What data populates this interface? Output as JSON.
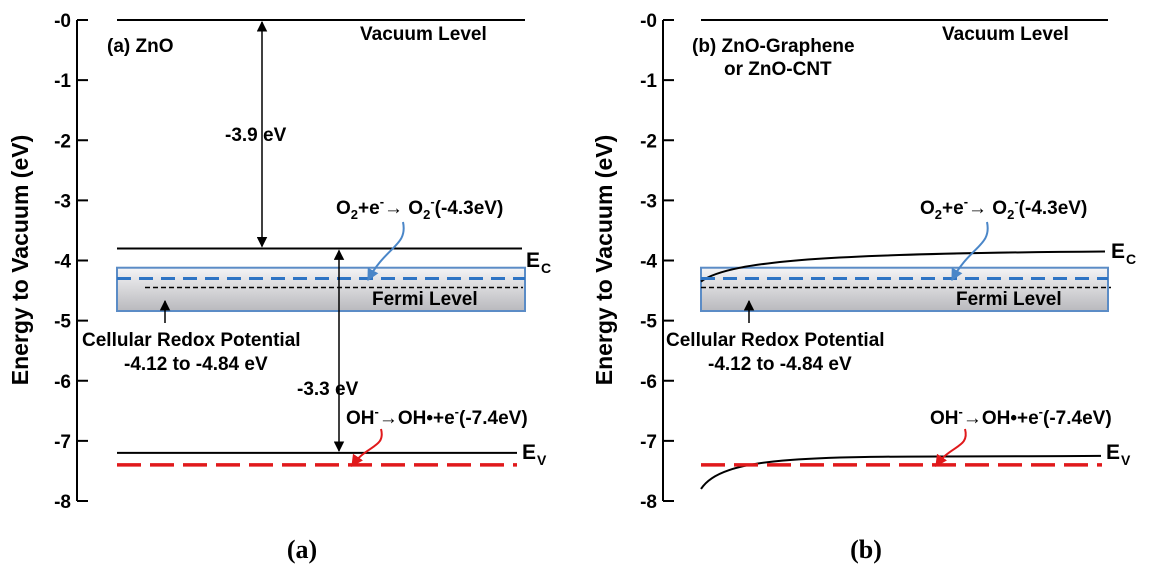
{
  "panels": [
    {
      "id": "a",
      "caption": "a",
      "title_lines": [
        "(a) ZnO"
      ],
      "ylabel": "Energy to Vacuum (eV)",
      "yticks": [
        "-0",
        "-1",
        "-2",
        "-3",
        "-4",
        "-5",
        "-6",
        "-7",
        "-8"
      ],
      "ylim": [
        0,
        -8
      ],
      "vacuum_label": "Vacuum Level",
      "ec_label": "E",
      "ec_sub": "C",
      "ev_label": "E",
      "ev_sub": "V",
      "fermi_label": "Fermi Level",
      "redox_label_lines": [
        "Cellular Redox Potential",
        "-4.12 to -4.84 eV"
      ],
      "o2_reaction": {
        "a": "O",
        "b": "2",
        "c": "+e",
        "d": "-",
        "e": "→ O",
        "f": "2",
        "g": "-",
        "h": "(-4.3eV)"
      },
      "oh_reaction": {
        "a": "OH",
        "b": "-",
        "c": "→OH•+e",
        "d": "-",
        "e": "(-7.4eV)"
      },
      "gap_vac_label": "-3.9 eV",
      "gap_band_label": "-3.3 eV",
      "energies": {
        "vacuum": 0,
        "ec": -3.8,
        "ev": -7.2,
        "fermi": -4.45,
        "o2": -4.3,
        "oh": -7.4,
        "redox_top": -4.12,
        "redox_bottom": -4.84
      },
      "band_bending": false
    },
    {
      "id": "b",
      "caption": "b",
      "title_lines": [
        "(b) ZnO-Graphene",
        "or ZnO-CNT"
      ],
      "ylabel": "Energy to Vacuum (eV)",
      "yticks": [
        "-0",
        "-1",
        "-2",
        "-3",
        "-4",
        "-5",
        "-6",
        "-7",
        "-8"
      ],
      "ylim": [
        0,
        -8
      ],
      "vacuum_label": "Vacuum Level",
      "ec_label": "E",
      "ec_sub": "C",
      "ev_label": "E",
      "ev_sub": "V",
      "fermi_label": "Fermi Level",
      "redox_label_lines": [
        "Cellular Redox Potential",
        "-4.12 to -4.84 eV"
      ],
      "o2_reaction": {
        "a": "O",
        "b": "2",
        "c": "+e",
        "d": "-",
        "e": "→ O",
        "f": "2",
        "g": "-",
        "h": "(-4.3eV)"
      },
      "oh_reaction": {
        "a": "OH",
        "b": "-",
        "c": "→OH•+e",
        "d": "-",
        "e": "(-7.4eV)"
      },
      "energies": {
        "vacuum": 0,
        "ec": -3.85,
        "ev": -7.25,
        "fermi": -4.45,
        "o2": -4.3,
        "oh": -7.4,
        "redox_top": -4.12,
        "redox_bottom": -4.84,
        "ec_left": -4.35,
        "ev_left": -7.8
      },
      "band_bending": true
    }
  ],
  "colors": {
    "line": "#000000",
    "o2_dash": "#2e74c4",
    "oh_dash": "#e0191b",
    "box_stroke": "#5b8cc6",
    "box_fill_top": "#f4f4f6",
    "box_fill_bottom": "#b9b9bd",
    "o2_arrow": "#4a86c8",
    "oh_arrow": "#e0191b"
  }
}
